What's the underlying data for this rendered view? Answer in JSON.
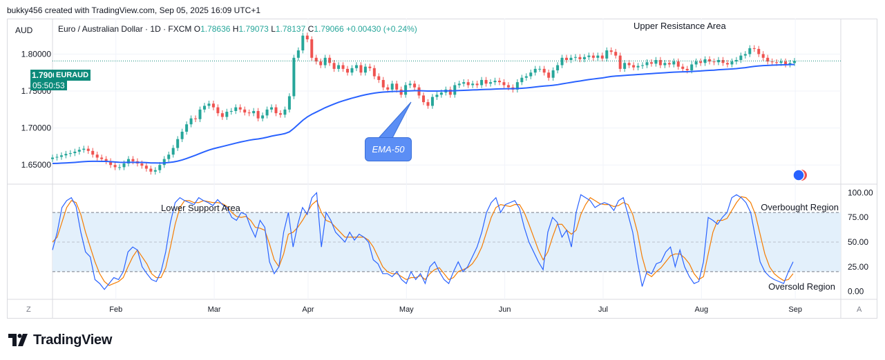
{
  "attribution": "bukky456 created with TradingView.com, Sep 05, 2025 16:09 UTC+1",
  "currency": "AUD",
  "legend": {
    "name": "Euro / Australian Dollar · 1D · FXCM",
    "o_label": "O",
    "o": "1.78636",
    "h_label": "H",
    "h": "1.79073",
    "l_label": "L",
    "l": "1.78137",
    "c_label": "C",
    "c": "1.79066",
    "change": "+0.00430 (+0.24%)"
  },
  "price_label": {
    "value": "1.79066",
    "symbol": "EURAUD",
    "countdown": "05:50:53"
  },
  "annotations": {
    "upper_resistance": "Upper Resistance Area",
    "lower_support": "Lower Support Area",
    "overbought": "Overbought Region",
    "oversold": "Oversold Region",
    "ema_callout": "EMA-50"
  },
  "buttons": {
    "z": "Z",
    "a": "A"
  },
  "brand": "TradingView",
  "colors": {
    "up": "#26a69a",
    "down": "#ef5350",
    "ema": "#2962ff",
    "stoch_k": "#2962ff",
    "stoch_d": "#f57c00",
    "band": "#e3f0fb",
    "price_label": "#0c8a7a",
    "callout": "#5b8ef5"
  },
  "chart_data": [
    {
      "type": "candlestick",
      "title": "Euro / Australian Dollar · 1D · FXCM",
      "ylim": [
        1.625,
        1.82
      ],
      "y_ticks": [
        1.65,
        1.7,
        1.75,
        1.8
      ],
      "y_tick_labels": [
        "1.65000",
        "1.70000",
        "1.75000",
        "1.80000"
      ],
      "x_labels": [
        "Feb",
        "Mar",
        "Apr",
        "May",
        "Jun",
        "Jul",
        "Aug",
        "Sep"
      ],
      "close": [
        1.66,
        1.661,
        1.663,
        1.665,
        1.666,
        1.668,
        1.6705,
        1.672,
        1.669,
        1.664,
        1.66,
        1.658,
        1.655,
        1.65,
        1.647,
        1.647,
        1.652,
        1.658,
        1.655,
        1.652,
        1.649,
        1.645,
        1.641,
        1.643,
        1.65,
        1.658,
        1.664,
        1.673,
        1.685,
        1.695,
        1.705,
        1.713,
        1.712,
        1.725,
        1.73,
        1.733,
        1.728,
        1.72,
        1.715,
        1.722,
        1.723,
        1.728,
        1.725,
        1.721,
        1.72,
        1.723,
        1.713,
        1.717,
        1.725,
        1.728,
        1.72,
        1.718,
        1.725,
        1.743,
        1.795,
        1.805,
        1.825,
        1.82,
        1.795,
        1.79,
        1.785,
        1.795,
        1.788,
        1.78,
        1.785,
        1.78,
        1.775,
        1.781,
        1.785,
        1.775,
        1.783,
        1.781,
        1.77,
        1.765,
        1.755,
        1.752,
        1.76,
        1.752,
        1.745,
        1.758,
        1.76,
        1.755,
        1.744,
        1.735,
        1.73,
        1.742,
        1.745,
        1.748,
        1.752,
        1.745,
        1.758,
        1.76,
        1.762,
        1.758,
        1.76,
        1.758,
        1.765,
        1.76,
        1.762,
        1.764,
        1.762,
        1.758,
        1.755,
        1.752,
        1.762,
        1.768,
        1.77,
        1.775,
        1.78,
        1.78,
        1.775,
        1.768,
        1.778,
        1.785,
        1.795,
        1.792,
        1.795,
        1.796,
        1.793,
        1.796,
        1.798,
        1.795,
        1.798,
        1.794,
        1.805,
        1.803,
        1.798,
        1.78,
        1.788,
        1.785,
        1.782,
        1.784,
        1.785,
        1.789,
        1.787,
        1.792,
        1.785,
        1.788,
        1.786,
        1.79,
        1.783,
        1.78,
        1.778,
        1.786,
        1.79,
        1.788,
        1.793,
        1.79,
        1.789,
        1.792,
        1.788,
        1.786,
        1.79,
        1.792,
        1.798,
        1.8,
        1.808,
        1.807,
        1.8,
        1.795,
        1.79,
        1.789,
        1.788,
        1.79,
        1.786,
        1.788,
        1.7907
      ],
      "ema_50": [
        1.652,
        1.6522,
        1.6525,
        1.6528,
        1.6531,
        1.6535,
        1.654,
        1.6545,
        1.6548,
        1.655,
        1.655,
        1.6549,
        1.6548,
        1.6545,
        1.654,
        1.6536,
        1.6535,
        1.6536,
        1.6536,
        1.6535,
        1.6534,
        1.6532,
        1.6528,
        1.6527,
        1.6526,
        1.6528,
        1.6533,
        1.654,
        1.6552,
        1.6568,
        1.6588,
        1.661,
        1.6632,
        1.6656,
        1.668,
        1.6702,
        1.672,
        1.6735,
        1.675,
        1.6765,
        1.678,
        1.6795,
        1.681,
        1.6822,
        1.6835,
        1.6845,
        1.6852,
        1.6862,
        1.6875,
        1.689,
        1.6902,
        1.6912,
        1.6925,
        1.6948,
        1.6995,
        1.705,
        1.7105,
        1.715,
        1.7185,
        1.7215,
        1.7245,
        1.7275,
        1.73,
        1.7325,
        1.7348,
        1.7368,
        1.7386,
        1.7404,
        1.742,
        1.7436,
        1.745,
        1.7462,
        1.7472,
        1.748,
        1.7486,
        1.749,
        1.7494,
        1.7496,
        1.7497,
        1.75,
        1.7503,
        1.7505,
        1.7505,
        1.7503,
        1.75,
        1.75,
        1.75,
        1.7501,
        1.7502,
        1.7502,
        1.7504,
        1.7507,
        1.751,
        1.7512,
        1.7515,
        1.7517,
        1.752,
        1.7522,
        1.7524,
        1.7527,
        1.7529,
        1.7531,
        1.7532,
        1.7532,
        1.7534,
        1.7538,
        1.7542,
        1.7548,
        1.7555,
        1.7562,
        1.7568,
        1.7572,
        1.7578,
        1.7586,
        1.7597,
        1.7607,
        1.7617,
        1.7627,
        1.7636,
        1.7646,
        1.7655,
        1.7663,
        1.7671,
        1.7677,
        1.7688,
        1.7697,
        1.7703,
        1.7707,
        1.7711,
        1.7716,
        1.772,
        1.7724,
        1.7728,
        1.7732,
        1.7736,
        1.7741,
        1.7744,
        1.7748,
        1.7752,
        1.7756,
        1.7758,
        1.776,
        1.7762,
        1.7765,
        1.7769,
        1.7772,
        1.7777,
        1.778,
        1.7783,
        1.7788,
        1.7792,
        1.7795,
        1.7799,
        1.7803,
        1.781,
        1.7816,
        1.7826,
        1.7834,
        1.784,
        1.7844,
        1.7847,
        1.785,
        1.7852,
        1.7855,
        1.7856,
        1.7858,
        1.786
      ]
    },
    {
      "type": "line",
      "ylim": [
        -8,
        108
      ],
      "y_ticks": [
        0,
        25,
        50,
        75,
        100
      ],
      "y_tick_labels": [
        "0.00",
        "25.00",
        "50.00",
        "75.00",
        "100.00"
      ],
      "levels": [
        20,
        80
      ],
      "series": [
        {
          "values": [
            42,
            60,
            85,
            92,
            95,
            86,
            60,
            40,
            35,
            12,
            8,
            2,
            8,
            14,
            12,
            20,
            40,
            45,
            42,
            25,
            18,
            12,
            10,
            20,
            40,
            70,
            90,
            95,
            92,
            90,
            88,
            95,
            92,
            90,
            87,
            93,
            88,
            85,
            75,
            72,
            80,
            78,
            65,
            55,
            72,
            65,
            30,
            18,
            25,
            60,
            80,
            45,
            68,
            85,
            78,
            95,
            100,
            45,
            80,
            72,
            60,
            55,
            50,
            60,
            52,
            58,
            55,
            50,
            32,
            28,
            18,
            18,
            15,
            20,
            12,
            8,
            20,
            12,
            18,
            8,
            25,
            30,
            20,
            12,
            8,
            20,
            30,
            20,
            25,
            35,
            45,
            60,
            80,
            90,
            95,
            80,
            88,
            90,
            92,
            84,
            65,
            50,
            40,
            30,
            22,
            60,
            75,
            70,
            55,
            62,
            45,
            80,
            98,
            95,
            92,
            85,
            88,
            90,
            88,
            82,
            92,
            95,
            78,
            60,
            30,
            5,
            20,
            18,
            28,
            30,
            40,
            45,
            25,
            42,
            25,
            15,
            8,
            10,
            30,
            75,
            72,
            68,
            75,
            80,
            95,
            98,
            95,
            90,
            80,
            55,
            30,
            20,
            15,
            12,
            10,
            8,
            20,
            30
          ]
        },
        {
          "values": [
            50,
            55,
            70,
            85,
            92,
            90,
            78,
            60,
            45,
            30,
            18,
            10,
            6,
            8,
            10,
            14,
            25,
            35,
            42,
            35,
            28,
            18,
            14,
            14,
            24,
            45,
            68,
            85,
            92,
            92,
            90,
            90,
            92,
            91,
            90,
            90,
            89,
            86,
            80,
            76,
            75,
            76,
            72,
            65,
            64,
            62,
            48,
            32,
            25,
            38,
            58,
            60,
            65,
            72,
            80,
            88,
            92,
            80,
            72,
            70,
            65,
            60,
            55,
            55,
            55,
            55,
            55,
            52,
            45,
            35,
            25,
            20,
            18,
            18,
            15,
            12,
            14,
            14,
            16,
            12,
            18,
            22,
            24,
            18,
            12,
            14,
            20,
            22,
            24,
            28,
            35,
            45,
            60,
            75,
            85,
            88,
            87,
            86,
            88,
            88,
            80,
            68,
            55,
            42,
            32,
            40,
            55,
            68,
            68,
            62,
            58,
            62,
            78,
            88,
            95,
            92,
            89,
            88,
            88,
            86,
            87,
            90,
            88,
            78,
            60,
            35,
            18,
            15,
            20,
            24,
            30,
            36,
            38,
            38,
            34,
            28,
            18,
            12,
            15,
            38,
            60,
            72,
            72,
            74,
            82,
            90,
            96,
            95,
            90,
            78,
            58,
            38,
            25,
            18,
            14,
            11,
            12,
            18
          ]
        }
      ]
    }
  ]
}
